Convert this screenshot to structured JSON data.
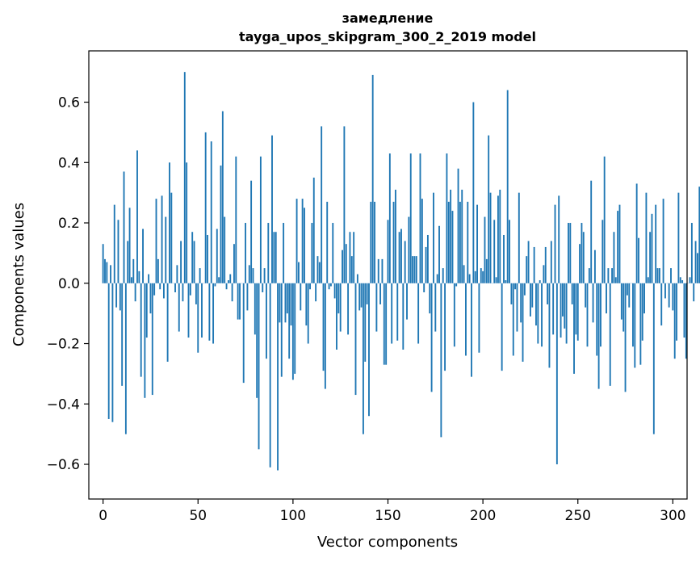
{
  "chart_data": {
    "type": "bar",
    "title": "замедление",
    "subtitle": "tayga_upos_skipgram_300_2_2019 model",
    "xlabel": "Vector components",
    "ylabel": "Components values",
    "xlim": [
      -7.5,
      307.5
    ],
    "ylim": [
      -0.715,
      0.77
    ],
    "xticks": [
      0,
      50,
      100,
      150,
      200,
      250,
      300
    ],
    "xtick_labels": [
      "0",
      "50",
      "100",
      "150",
      "200",
      "250",
      "300"
    ],
    "yticks": [
      -0.6,
      -0.4,
      -0.2,
      0.0,
      0.2,
      0.4,
      0.6
    ],
    "ytick_labels": [
      "−0.6",
      "−0.4",
      "−0.2",
      "0.0",
      "0.2",
      "0.4",
      "0.6"
    ],
    "grid": false,
    "bar_color": "#1f77b4",
    "values": [
      0.13,
      0.08,
      0.07,
      -0.45,
      0.06,
      -0.46,
      0.26,
      -0.08,
      0.21,
      -0.09,
      -0.34,
      0.37,
      -0.5,
      0.14,
      0.25,
      0.02,
      0.08,
      -0.06,
      0.44,
      0.04,
      -0.31,
      0.18,
      -0.38,
      -0.18,
      0.03,
      -0.1,
      -0.37,
      -0.04,
      0.28,
      0.08,
      -0.02,
      0.29,
      -0.05,
      0.22,
      -0.26,
      0.4,
      0.3,
      0.0,
      -0.03,
      0.06,
      -0.16,
      0.14,
      -0.06,
      0.7,
      0.4,
      -0.18,
      -0.04,
      0.17,
      0.14,
      -0.07,
      -0.23,
      0.05,
      -0.18,
      0.0,
      0.5,
      0.16,
      -0.19,
      0.47,
      -0.2,
      -0.01,
      0.18,
      0.02,
      0.39,
      0.57,
      0.22,
      -0.02,
      0.01,
      0.03,
      -0.06,
      0.13,
      0.42,
      -0.12,
      -0.12,
      0.0,
      -0.33,
      0.2,
      -0.09,
      0.06,
      0.34,
      0.05,
      -0.17,
      -0.38,
      -0.55,
      0.42,
      -0.03,
      0.05,
      -0.25,
      0.2,
      -0.61,
      0.49,
      0.17,
      0.17,
      -0.62,
      -0.13,
      -0.31,
      0.2,
      -0.13,
      -0.1,
      -0.25,
      -0.14,
      -0.32,
      -0.3,
      0.28,
      0.07,
      -0.09,
      0.28,
      0.25,
      -0.14,
      -0.2,
      -0.02,
      0.2,
      0.35,
      -0.06,
      0.09,
      0.07,
      0.52,
      -0.29,
      -0.35,
      0.27,
      -0.02,
      -0.01,
      0.2,
      -0.05,
      -0.22,
      -0.1,
      -0.16,
      0.11,
      0.52,
      0.13,
      -0.17,
      0.17,
      0.09,
      0.17,
      -0.37,
      0.03,
      -0.09,
      -0.08,
      -0.5,
      -0.26,
      -0.07,
      -0.44,
      0.27,
      0.69,
      0.27,
      -0.16,
      0.08,
      -0.07,
      0.08,
      -0.27,
      -0.27,
      0.21,
      0.43,
      -0.2,
      0.27,
      0.31,
      -0.19,
      0.17,
      0.18,
      -0.22,
      0.14,
      -0.12,
      0.22,
      0.43,
      0.09,
      0.09,
      0.09,
      -0.2,
      0.43,
      0.28,
      -0.03,
      0.12,
      0.16,
      -0.1,
      -0.36,
      0.3,
      -0.16,
      0.03,
      0.19,
      -0.51,
      0.05,
      -0.29,
      0.43,
      0.27,
      0.31,
      0.24,
      -0.21,
      -0.01,
      0.38,
      0.27,
      0.31,
      0.06,
      -0.24,
      0.27,
      0.03,
      -0.31,
      0.6,
      0.04,
      0.26,
      -0.23,
      0.05,
      0.04,
      0.22,
      0.08,
      0.49,
      0.3,
      0.0,
      0.21,
      0.02,
      0.29,
      0.31,
      -0.29,
      0.16,
      0.01,
      0.64,
      0.21,
      -0.07,
      -0.24,
      -0.02,
      -0.16,
      0.3,
      -0.13,
      -0.26,
      -0.04,
      0.09,
      0.14,
      -0.11,
      -0.08,
      0.12,
      -0.14,
      -0.2,
      0.01,
      -0.21,
      0.06,
      0.12,
      -0.07,
      -0.28,
      0.14,
      -0.17,
      0.26,
      -0.6,
      0.29,
      -0.18,
      -0.11,
      -0.15,
      -0.2,
      0.2,
      0.2,
      -0.07,
      -0.3,
      -0.17,
      -0.19,
      0.13,
      0.2,
      0.17,
      -0.08,
      -0.21,
      0.05,
      0.34,
      -0.13,
      0.11,
      -0.24,
      -0.35,
      -0.21,
      0.21,
      0.42,
      -0.1,
      0.05,
      -0.34,
      0.05,
      0.17,
      0.02,
      0.24,
      0.26,
      -0.12,
      -0.16,
      -0.36,
      -0.04,
      -0.08,
      0.0,
      -0.21,
      -0.28,
      0.33,
      0.15,
      -0.27,
      -0.19,
      -0.1,
      0.3,
      0.02,
      0.17,
      0.23,
      -0.5,
      0.26,
      0.05,
      0.05,
      -0.14,
      0.28,
      -0.05,
      0.0,
      -0.08,
      0.05,
      -0.09,
      -0.25,
      -0.19,
      0.3,
      0.02,
      0.01,
      -0.18,
      -0.25,
      0.0,
      0.02,
      0.2,
      -0.06,
      0.14,
      0.1,
      0.32,
      0.3
    ]
  }
}
